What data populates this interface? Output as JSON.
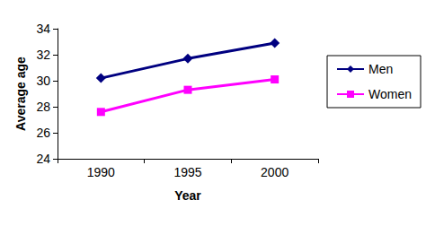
{
  "chart_data": {
    "type": "line",
    "x_label": "Year",
    "y_label": "Average age",
    "categories": [
      "1990",
      "1995",
      "2000"
    ],
    "series": [
      {
        "name": "Men",
        "color": "#000080",
        "marker": "diamond",
        "values": [
          30.2,
          31.7,
          32.9
        ]
      },
      {
        "name": "Women",
        "color": "#ff00ff",
        "marker": "square",
        "values": [
          27.6,
          29.3,
          30.1
        ]
      }
    ],
    "ylim": [
      24,
      34
    ],
    "yticks": [
      24,
      26,
      28,
      30,
      32,
      34
    ],
    "grid": false,
    "legend": "right"
  }
}
